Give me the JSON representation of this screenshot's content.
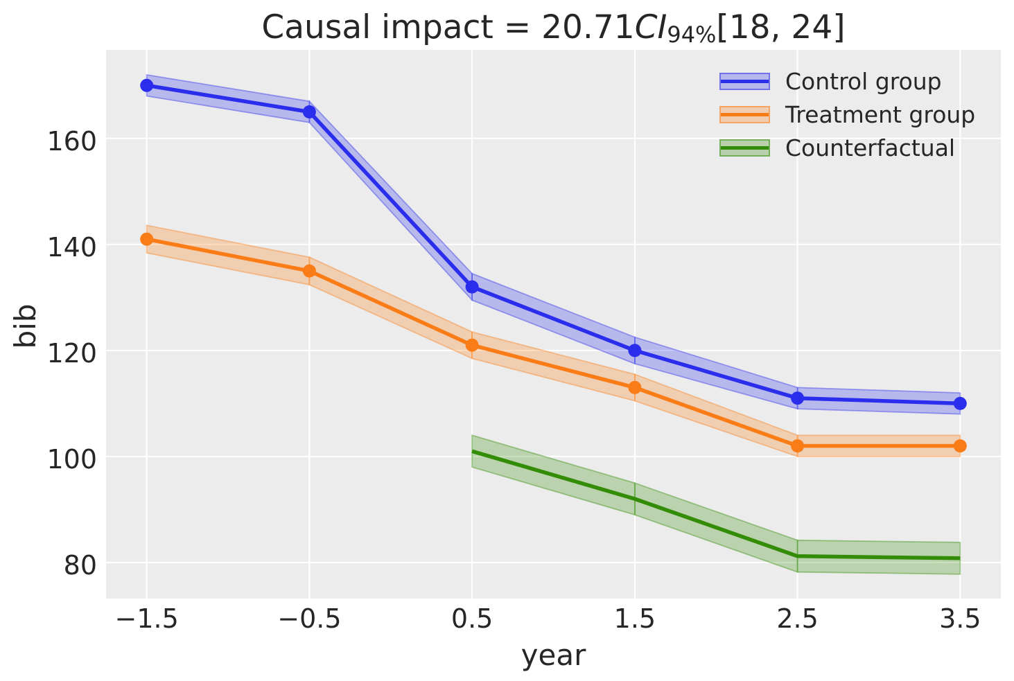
{
  "figure": {
    "background": "#ffffff",
    "plot_background": "#ececec",
    "grid_color": "#ffffff",
    "text_color": "#262626"
  },
  "title": {
    "prefix": "Causal impact = 20.71",
    "ci_label": "CI",
    "ci_sub": "94%",
    "interval": "[18, 24]"
  },
  "axes": {
    "xlabel": "year",
    "ylabel": "bib"
  },
  "chart_data": {
    "type": "line",
    "title": "Causal impact = 20.71 CI_94% [18, 24]",
    "xlabel": "year",
    "ylabel": "bib",
    "grid": true,
    "legend_position": "upper right",
    "xlim": [
      -1.75,
      3.75
    ],
    "ylim": [
      73.2,
      176.7
    ],
    "x_ticks": [
      -1.5,
      -0.5,
      0.5,
      1.5,
      2.5,
      3.5
    ],
    "y_ticks": [
      80,
      100,
      120,
      140,
      160
    ],
    "series": [
      {
        "name": "Control group",
        "color": "#2a2eec",
        "markers": true,
        "x": [
          -1.5,
          -0.5,
          0.5,
          1.5,
          2.5,
          3.5
        ],
        "y": [
          170,
          165,
          132,
          120,
          111,
          110
        ],
        "ci_halfwidth": [
          2,
          2,
          2.5,
          2.5,
          2,
          2
        ]
      },
      {
        "name": "Treatment group",
        "color": "#fa7c17",
        "markers": true,
        "x": [
          -1.5,
          -0.5,
          0.5,
          1.5,
          2.5,
          3.5
        ],
        "y": [
          141,
          135,
          121,
          113,
          102,
          102
        ],
        "ci_halfwidth": [
          2.6,
          2.6,
          2.5,
          2.5,
          2,
          2
        ]
      },
      {
        "name": "Counterfactual",
        "color": "#328c06",
        "markers": false,
        "x": [
          0.5,
          1.5,
          2.5,
          3.5
        ],
        "y": [
          101,
          92,
          81.2,
          80.8
        ],
        "ci_halfwidth": [
          3,
          3,
          3,
          3
        ]
      }
    ]
  }
}
